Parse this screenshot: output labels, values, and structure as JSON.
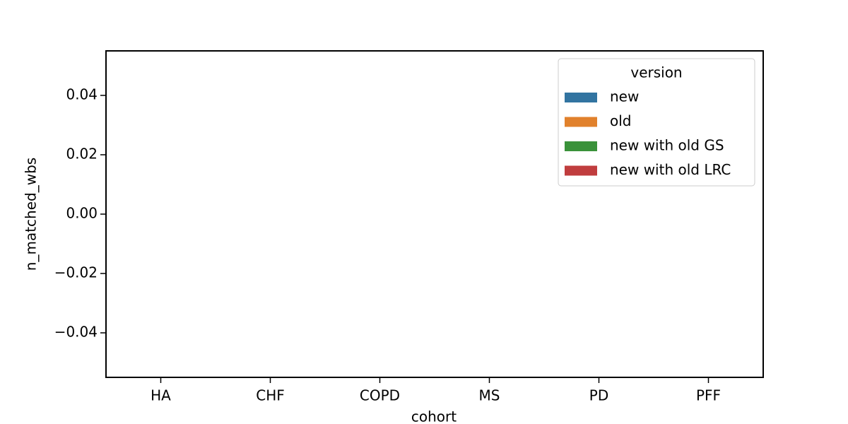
{
  "chart_data": {
    "type": "bar",
    "xlabel": "cohort",
    "ylabel": "n_matched_wbs",
    "categories": [
      "HA",
      "CHF",
      "COPD",
      "MS",
      "PD",
      "PFF"
    ],
    "series": [
      {
        "name": "new",
        "color": "#3274a1",
        "values": [
          0,
          0,
          0,
          0,
          0,
          0
        ]
      },
      {
        "name": "old",
        "color": "#e1812c",
        "values": [
          0,
          0,
          0,
          0,
          0,
          0
        ]
      },
      {
        "name": "new with old GS",
        "color": "#3a923a",
        "values": [
          0,
          0,
          0,
          0,
          0,
          0
        ]
      },
      {
        "name": "new with old LRC",
        "color": "#c03d3e",
        "values": [
          0,
          0,
          0,
          0,
          0,
          0
        ]
      }
    ],
    "legend_title": "version",
    "legend": "upper right",
    "ylim": [
      -0.055,
      0.055
    ],
    "yticks": [
      {
        "value": -0.04,
        "label": "−0.04"
      },
      {
        "value": -0.02,
        "label": "−0.02"
      },
      {
        "value": 0,
        "label": "0.00"
      },
      {
        "value": 0.02,
        "label": "0.02"
      },
      {
        "value": 0.04,
        "label": "0.04"
      }
    ],
    "grid": false
  }
}
